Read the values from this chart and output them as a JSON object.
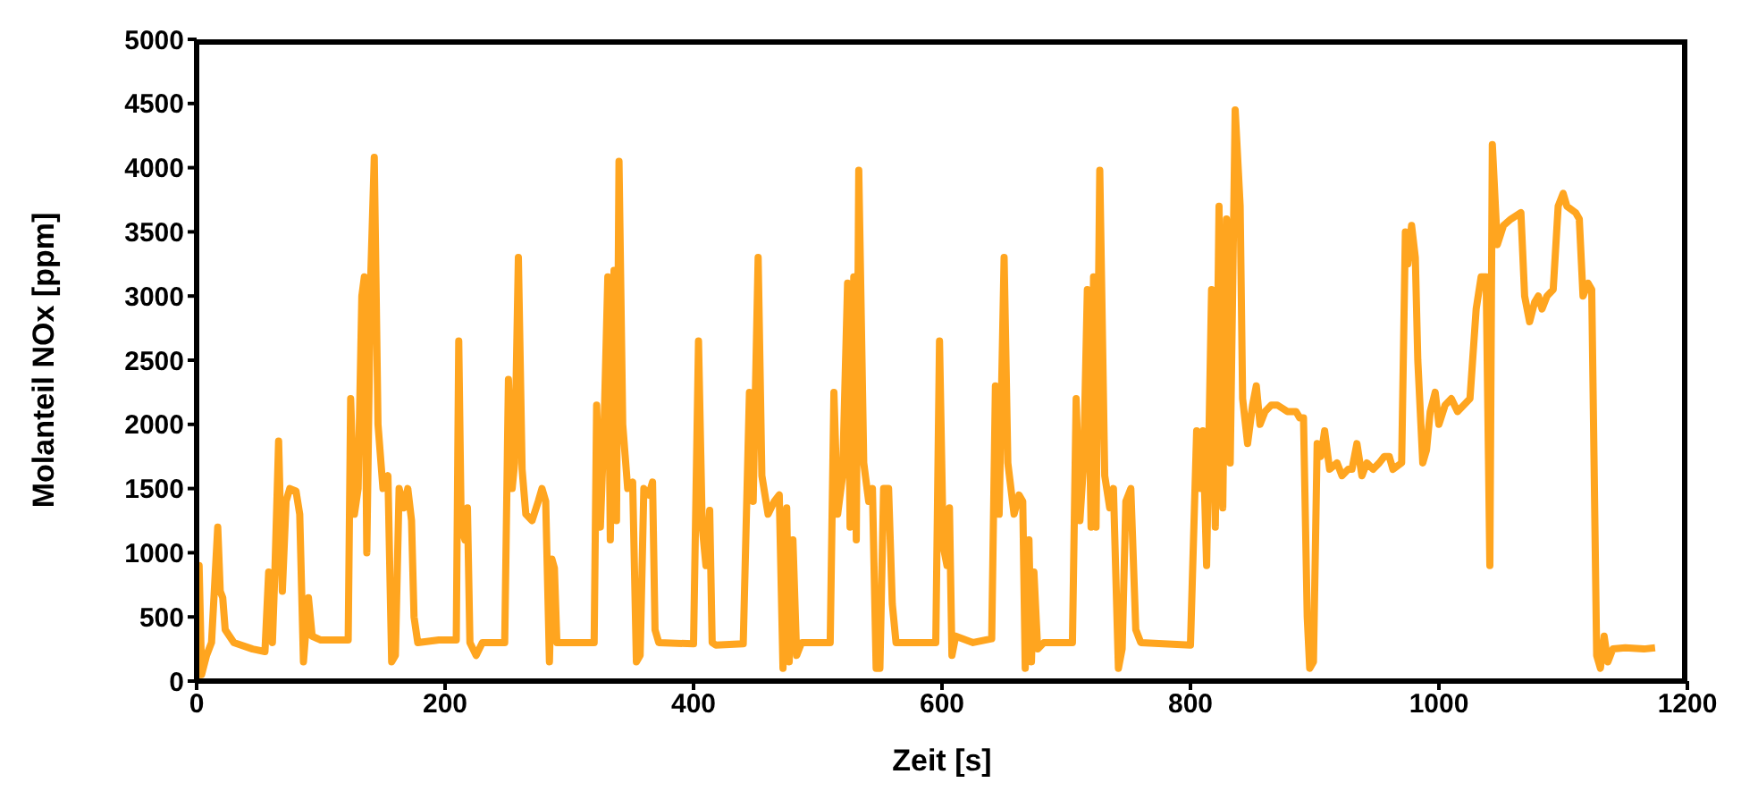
{
  "chart_data": {
    "type": "line",
    "xlabel": "Zeit [s]",
    "ylabel": "Molanteil NOx [ppm]",
    "xlim": [
      0,
      1200
    ],
    "xticks": [
      0,
      200,
      400,
      600,
      800,
      1000,
      1200
    ],
    "ylim": [
      0,
      5000
    ],
    "yticks": [
      0,
      500,
      1000,
      1500,
      2000,
      2500,
      3000,
      3500,
      4000,
      4500,
      5000
    ],
    "grid": false,
    "legend": false,
    "marker": "none",
    "line_style": "solid",
    "series": [
      {
        "color": "#ffa51f",
        "x": [
          0,
          2,
          4,
          8,
          12,
          17,
          19,
          21,
          23,
          30,
          45,
          55,
          58,
          61,
          63,
          66,
          69,
          72,
          75,
          80,
          83,
          86,
          90,
          93,
          100,
          122,
          124,
          127,
          130,
          133,
          135,
          137,
          140,
          143,
          146,
          150,
          154,
          157,
          160,
          163,
          167,
          170,
          173,
          175,
          178,
          195,
          209,
          211,
          213,
          216,
          218,
          220,
          225,
          230,
          248,
          251,
          254,
          256,
          259,
          262,
          265,
          270,
          275,
          278,
          281,
          284,
          286,
          288,
          290,
          300,
          320,
          322,
          325,
          328,
          331,
          333,
          336,
          338,
          340,
          343,
          347,
          351,
          354,
          357,
          360,
          364,
          367,
          369,
          372,
          400,
          404,
          407,
          410,
          413,
          415,
          418,
          440,
          445,
          448,
          452,
          455,
          460,
          465,
          469,
          472,
          475,
          477,
          480,
          483,
          487,
          510,
          513,
          516,
          520,
          524,
          526,
          529,
          531,
          533,
          537,
          541,
          544,
          547,
          550,
          553,
          557,
          560,
          563,
          595,
          598,
          601,
          604,
          606,
          608,
          611,
          625,
          640,
          643,
          646,
          650,
          653,
          658,
          662,
          665,
          667,
          670,
          672,
          674,
          677,
          682,
          705,
          708,
          711,
          714,
          717,
          720,
          722,
          724,
          727,
          731,
          735,
          738,
          742,
          745,
          748,
          752,
          756,
          760,
          800,
          805,
          808,
          810,
          813,
          817,
          820,
          823,
          826,
          829,
          832,
          836,
          840,
          842,
          846,
          850,
          853,
          856,
          860,
          865,
          870,
          878,
          885,
          888,
          891,
          894,
          896,
          899,
          902,
          905,
          908,
          912,
          918,
          922,
          927,
          930,
          934,
          938,
          942,
          947,
          952,
          956,
          960,
          963,
          970,
          973,
          975,
          978,
          981,
          983,
          987,
          990,
          993,
          997,
          1000,
          1005,
          1010,
          1015,
          1020,
          1025,
          1030,
          1034,
          1038,
          1041,
          1043,
          1047,
          1052,
          1058,
          1066,
          1069,
          1073,
          1077,
          1080,
          1083,
          1087,
          1092,
          1096,
          1100,
          1103,
          1110,
          1113,
          1116,
          1120,
          1123,
          1127,
          1130,
          1133,
          1136,
          1140,
          1150,
          1165,
          1174
        ],
        "values": [
          0,
          900,
          50,
          200,
          300,
          1200,
          700,
          650,
          400,
          300,
          250,
          230,
          850,
          300,
          850,
          1870,
          700,
          1400,
          1500,
          1480,
          1300,
          150,
          650,
          350,
          320,
          320,
          2200,
          1300,
          1500,
          3000,
          3150,
          1000,
          3100,
          4080,
          2000,
          1500,
          1600,
          150,
          200,
          1500,
          1350,
          1500,
          1250,
          500,
          300,
          320,
          320,
          2650,
          1200,
          1100,
          1350,
          300,
          200,
          300,
          300,
          2350,
          1500,
          1700,
          3300,
          1650,
          1300,
          1250,
          1400,
          1500,
          1400,
          150,
          950,
          880,
          300,
          300,
          300,
          2150,
          1200,
          2000,
          3150,
          1100,
          3200,
          1250,
          4050,
          2000,
          1500,
          1550,
          150,
          200,
          1500,
          1450,
          1550,
          400,
          300,
          290,
          2650,
          1200,
          900,
          1330,
          300,
          280,
          290,
          2250,
          1400,
          3300,
          1600,
          1300,
          1400,
          1450,
          100,
          1350,
          150,
          1100,
          200,
          300,
          300,
          2250,
          1300,
          1600,
          3100,
          1200,
          3150,
          1100,
          3980,
          1700,
          1400,
          1500,
          100,
          100,
          1500,
          1500,
          600,
          300,
          300,
          2650,
          1050,
          900,
          1350,
          200,
          350,
          300,
          330,
          2300,
          1300,
          3300,
          1700,
          1300,
          1450,
          1400,
          100,
          1100,
          150,
          850,
          250,
          300,
          300,
          2200,
          1250,
          1700,
          3050,
          1200,
          3150,
          1200,
          3980,
          1600,
          1350,
          1500,
          100,
          250,
          1400,
          1500,
          400,
          300,
          280,
          1950,
          1500,
          1950,
          900,
          3050,
          1200,
          3700,
          1350,
          3600,
          1700,
          4450,
          3700,
          2200,
          1850,
          2150,
          2300,
          2000,
          2100,
          2150,
          2150,
          2100,
          2100,
          2050,
          2050,
          500,
          100,
          150,
          1850,
          1750,
          1950,
          1650,
          1700,
          1600,
          1650,
          1650,
          1850,
          1600,
          1700,
          1650,
          1700,
          1750,
          1750,
          1650,
          1700,
          3500,
          3250,
          3550,
          3300,
          2500,
          1700,
          1800,
          2100,
          2250,
          2000,
          2150,
          2200,
          2100,
          2150,
          2200,
          2900,
          3150,
          3150,
          900,
          4180,
          3400,
          3550,
          3600,
          3650,
          3000,
          2800,
          2950,
          3000,
          2900,
          3000,
          3050,
          3700,
          3800,
          3700,
          3650,
          3600,
          3000,
          3100,
          3050,
          200,
          100,
          350,
          150,
          250,
          260,
          250,
          260
        ]
      }
    ]
  }
}
